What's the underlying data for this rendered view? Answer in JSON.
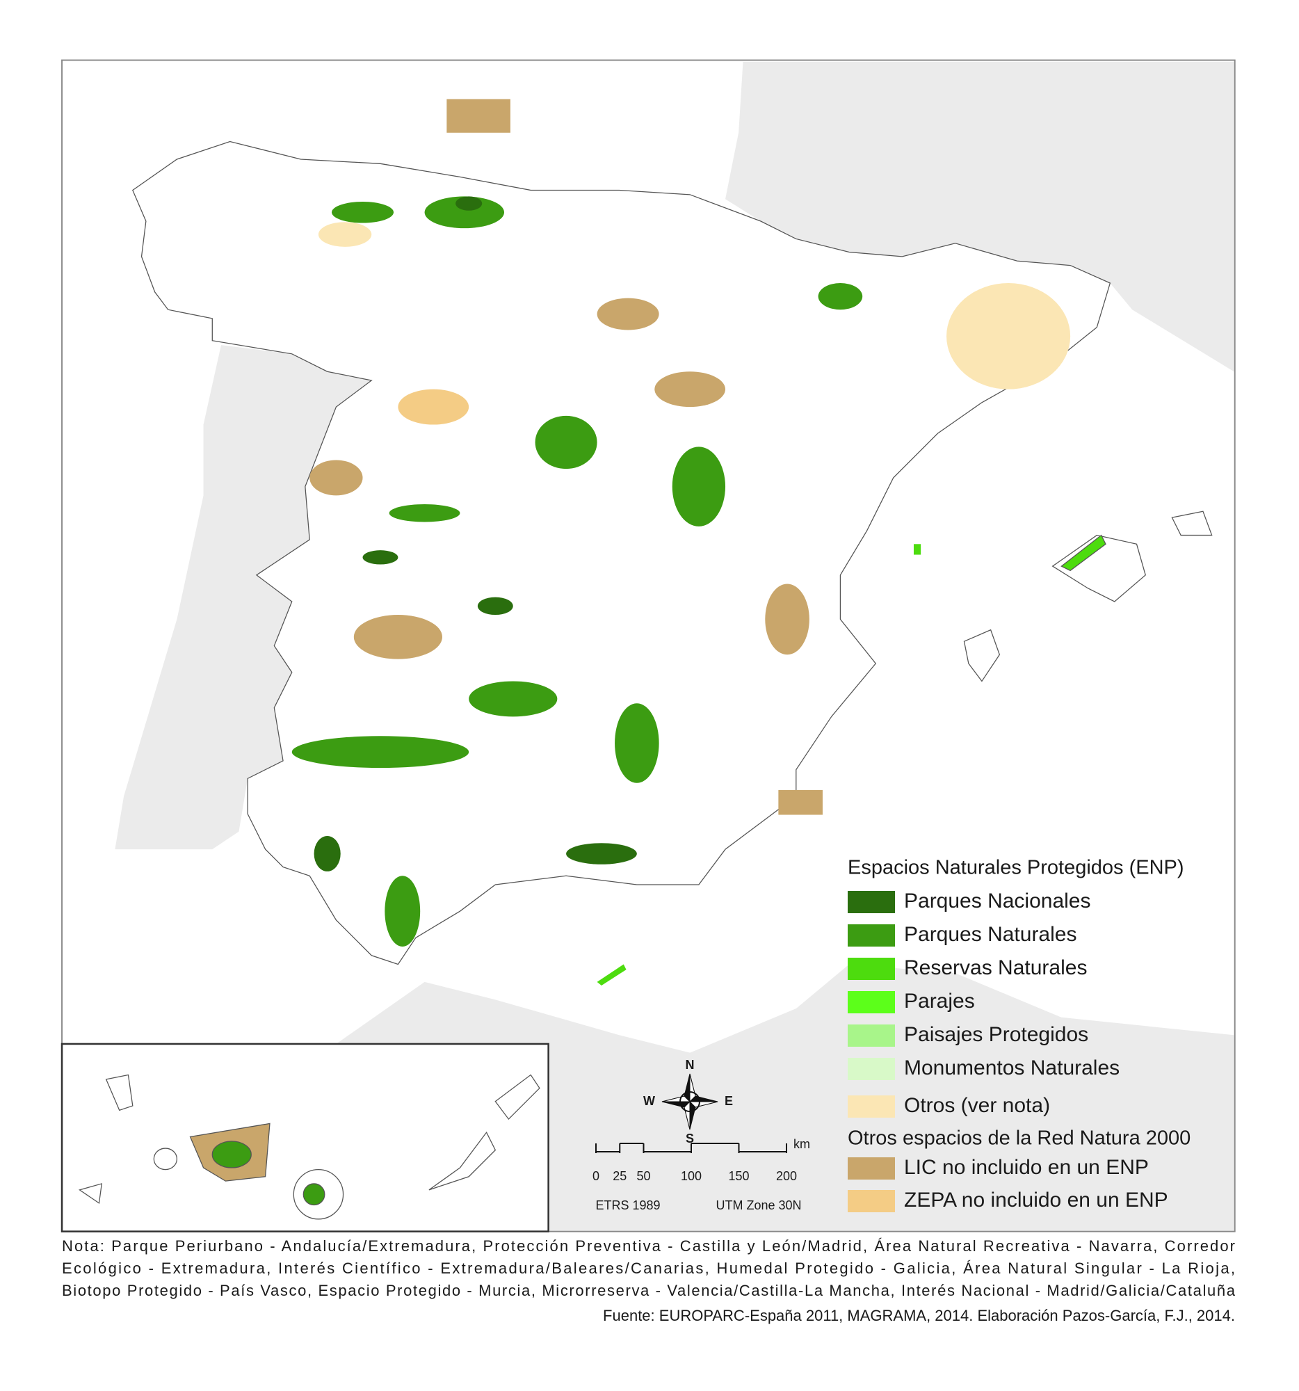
{
  "legend": {
    "title": "Espacios Naturales Protegidos (ENP)",
    "items": [
      {
        "label": "Parques Nacionales",
        "color": "#2a6e0e"
      },
      {
        "label": "Parques Naturales",
        "color": "#3c9c12"
      },
      {
        "label": "Reservas Naturales",
        "color": "#4ddc0e"
      },
      {
        "label": "Parajes",
        "color": "#5cff1a"
      },
      {
        "label": "Paisajes Protegidos",
        "color": "#a8f58a"
      },
      {
        "label": "Monumentos Naturales",
        "color": "#d8f9c8"
      },
      {
        "label": "Otros (ver nota)",
        "color": "#fbe6b4"
      }
    ],
    "subtitle": "Otros espacios de la Red Natura 2000",
    "natura_items": [
      {
        "label": "LIC no incluido en un ENP",
        "color": "#c9a66b"
      },
      {
        "label": "ZEPA no incluido en un ENP",
        "color": "#f4cc85"
      }
    ]
  },
  "compass": {
    "n": "N",
    "s": "S",
    "e": "E",
    "w": "W"
  },
  "scale_bar": {
    "ticks": [
      0,
      25,
      50,
      100,
      150,
      200
    ],
    "unit": "km"
  },
  "projection": {
    "datum": "ETRS 1989",
    "zone": "UTM Zone 30N"
  },
  "note": {
    "lines": [
      "Nota: Parque Periurbano - Andalucía/Extremadura, Protección Preventiva - Castilla y León/Madrid, Área Natural Recreativa - Navarra, Corredor",
      "Ecológico - Extremadura, Interés Científico - Extremadura/Baleares/Canarias, Humedal Protegido - Galicia, Área Natural Singular - La Rioja,",
      "Biotopo Protegido - País Vasco, Espacio Protegido - Murcia, Microrreserva - Valencia/Castilla-La Mancha, Interés Nacional - Madrid/Galicia/Cataluña"
    ]
  },
  "source": "Fuente: EUROPARC-España 2011, MAGRAMA, 2014. Elaboración Pazos-García, F.J., 2014."
}
